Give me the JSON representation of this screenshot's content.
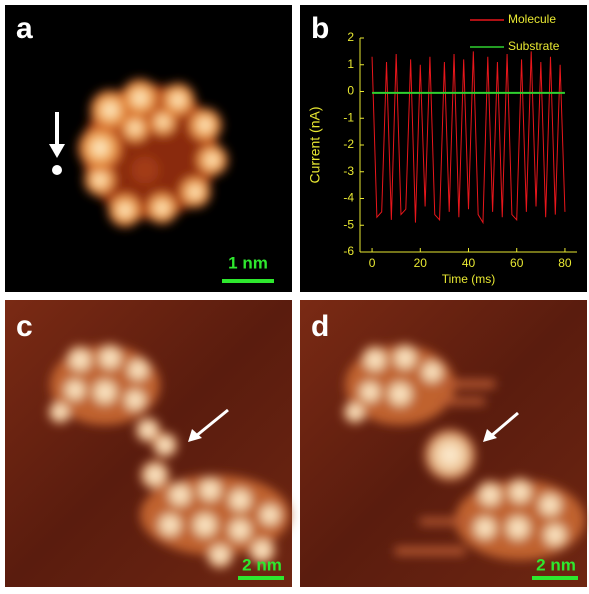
{
  "panels": {
    "a": {
      "label": "a",
      "scale": "1 nm"
    },
    "b": {
      "label": "b"
    },
    "c": {
      "label": "c",
      "scale": "2 nm"
    },
    "d": {
      "label": "d",
      "scale": "2 nm"
    }
  },
  "chart_data": {
    "type": "line",
    "x_label": "Time (ms)",
    "y_label": "Current (nA)",
    "xlim": [
      -5,
      85
    ],
    "xticks": [
      0,
      20,
      40,
      60,
      80
    ],
    "ylim": [
      -6,
      2
    ],
    "yticks": [
      -6,
      -5,
      -4,
      -3,
      -2,
      -1,
      0,
      1,
      2
    ],
    "legend": "top-right",
    "series": [
      {
        "name": "Molecule",
        "color": "#e8161b",
        "x": [
          0,
          2,
          4,
          6,
          8,
          10,
          12,
          14,
          16,
          18,
          20,
          22,
          24,
          26,
          28,
          30,
          32,
          34,
          36,
          38,
          40,
          42,
          44,
          46,
          48,
          50,
          52,
          54,
          56,
          58,
          60,
          62,
          64,
          66,
          68,
          70,
          72,
          74,
          76,
          78,
          80
        ],
        "values": [
          1.3,
          -4.7,
          -4.5,
          1.1,
          -4.8,
          1.4,
          -4.6,
          -4.4,
          1.2,
          -4.9,
          1.0,
          -4.3,
          1.3,
          -4.6,
          -4.8,
          1.1,
          -4.5,
          1.4,
          -4.7,
          1.2,
          -4.4,
          1.5,
          -4.6,
          -4.9,
          1.3,
          -4.5,
          1.1,
          -4.7,
          1.4,
          -4.6,
          -4.8,
          1.2,
          -4.5,
          1.5,
          -4.3,
          1.1,
          -4.7,
          1.3,
          -4.6,
          1.0,
          -4.5
        ]
      },
      {
        "name": "Substrate",
        "color": "#2fd02f",
        "x": [
          0,
          80
        ],
        "values": [
          -0.05,
          -0.05
        ]
      }
    ]
  }
}
